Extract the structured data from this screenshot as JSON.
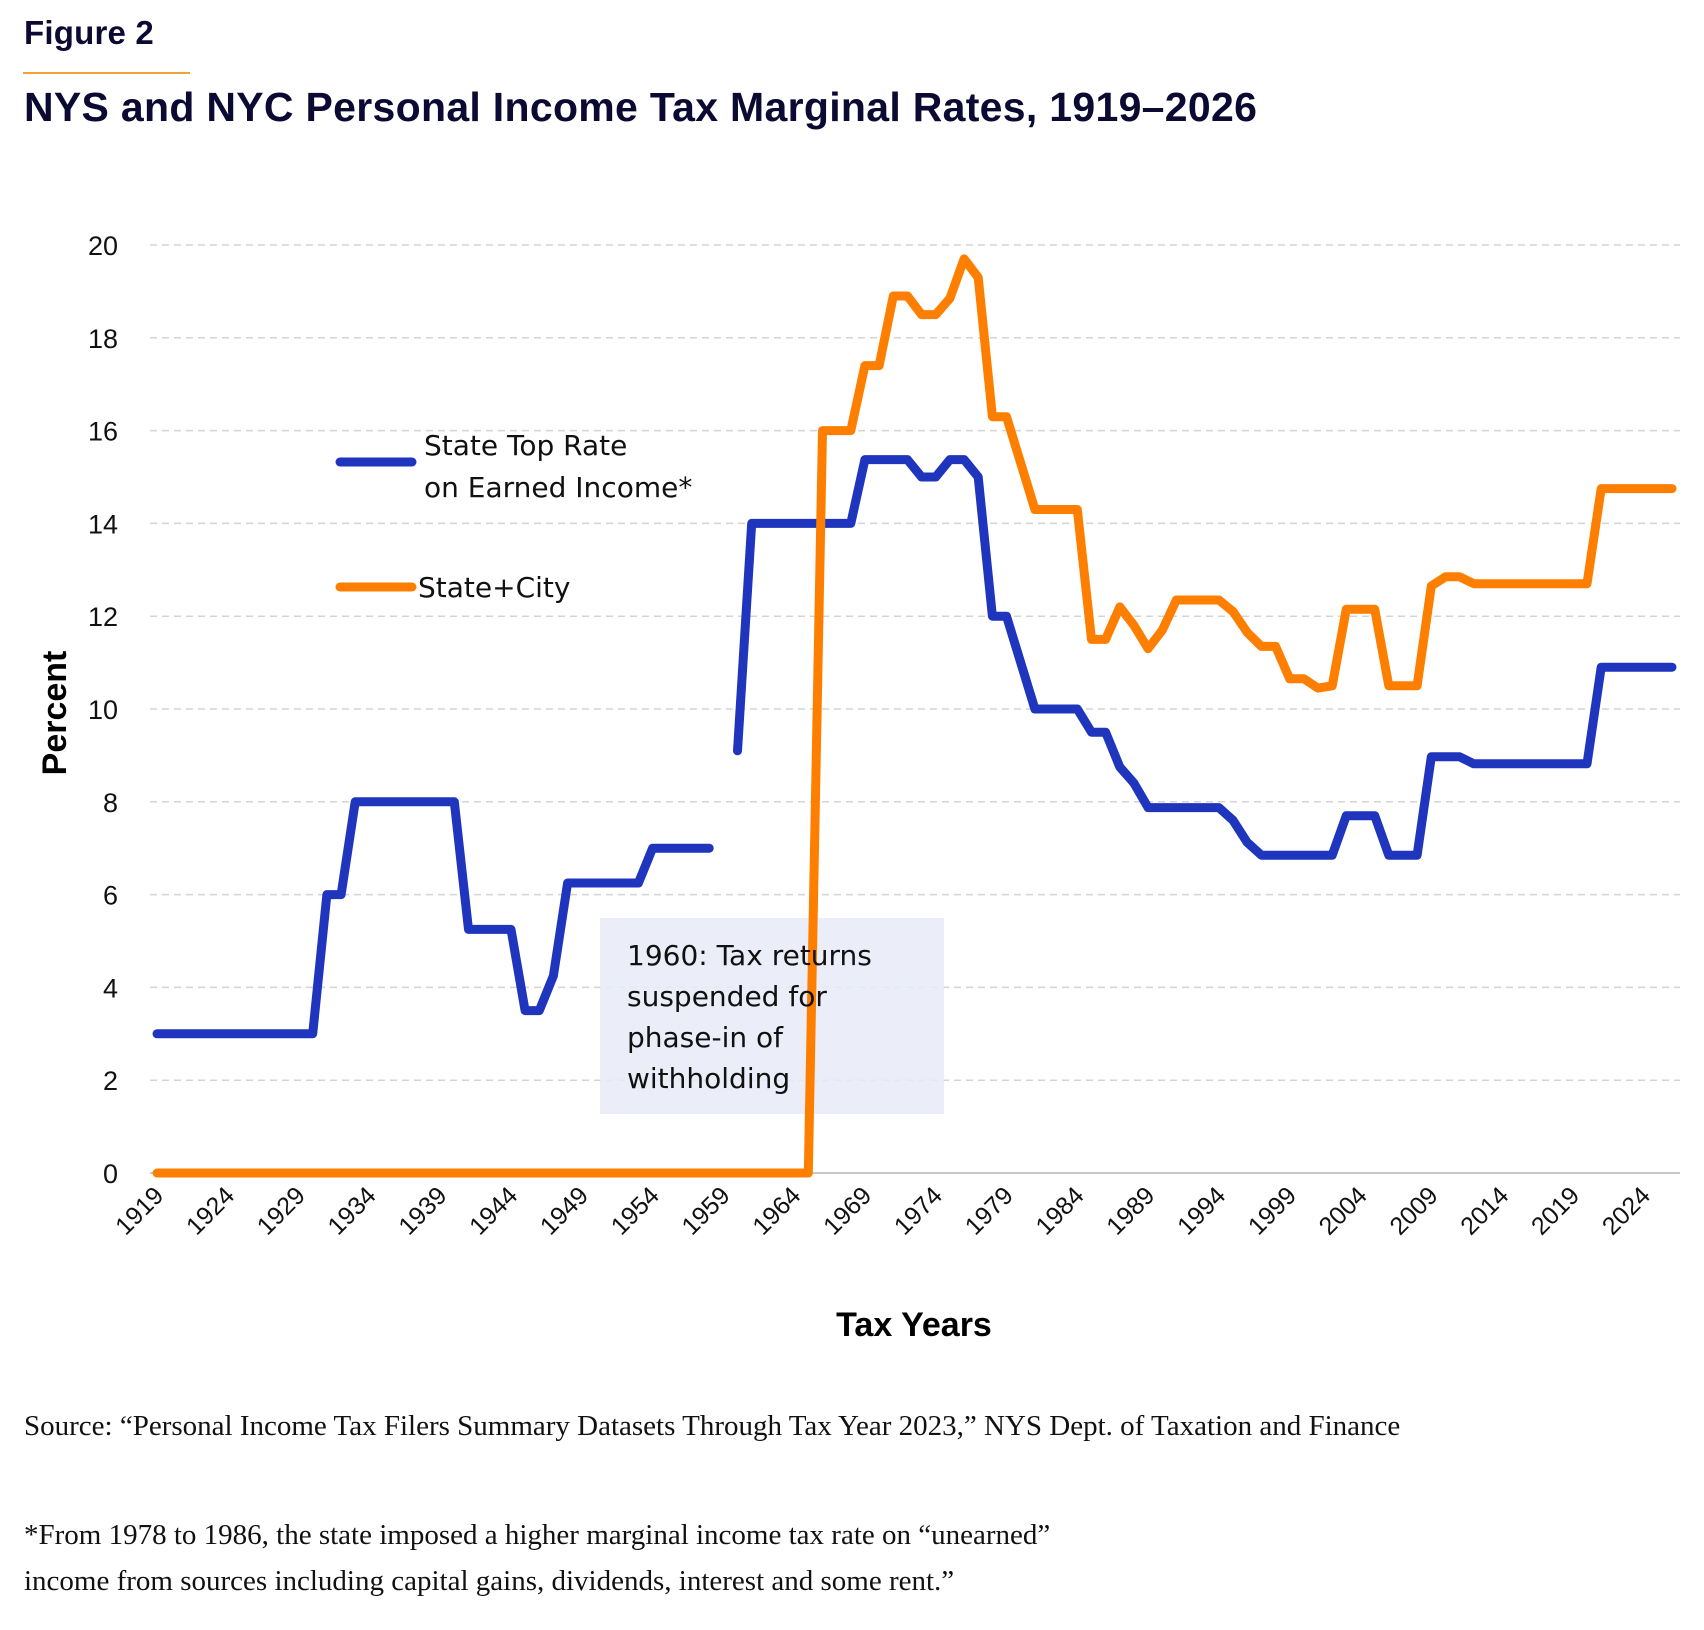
{
  "figure_label": "Figure 2",
  "title": "NYS and NYC Personal Income Tax Marginal Rates, 1919–2026",
  "source": "Source: “Personal Income Tax Filers Summary Datasets Through Tax Year 2023,” NYS Dept. of Taxation and Finance",
  "footnote_lines": [
    "*From 1978 to 1986, the state imposed a higher marginal income tax rate on “unearned”",
    "income from sources including capital gains, dividends, interest and some rent.”"
  ],
  "annotation": {
    "lines": [
      "1960: Tax returns",
      "suspended for",
      "phase-in of",
      "withholding"
    ],
    "background": "#e8ebf8"
  },
  "legend": [
    {
      "lines": [
        "State Top Rate",
        "on Earned Income*"
      ],
      "color": "#1f35bd"
    },
    {
      "lines": [
        "State+City"
      ],
      "color": "#fe7f00"
    }
  ],
  "chart_data": {
    "type": "line",
    "title": "NYS and NYC Personal Income Tax Marginal Rates, 1919–2026",
    "xlabel": "Tax Years",
    "ylabel": "Percent",
    "ylim": [
      0,
      20
    ],
    "xlim": [
      1919,
      2026
    ],
    "yticks": [
      0,
      2,
      4,
      6,
      8,
      10,
      12,
      14,
      16,
      18,
      20
    ],
    "xtick_labels": [
      "1919",
      "1924",
      "1929",
      "1934",
      "1939",
      "1944",
      "1949",
      "1954",
      "1959",
      "1964",
      "1969",
      "1974",
      "1979",
      "1984",
      "1989",
      "1994",
      "1999",
      "2004",
      "2009",
      "2014",
      "2019",
      "2024"
    ],
    "grid": "horizontal-dashed",
    "legend_position": "upper-left-inside",
    "x": [
      1919,
      1920,
      1921,
      1922,
      1923,
      1924,
      1925,
      1926,
      1927,
      1928,
      1929,
      1930,
      1931,
      1932,
      1933,
      1934,
      1935,
      1936,
      1937,
      1938,
      1939,
      1940,
      1941,
      1942,
      1943,
      1944,
      1945,
      1946,
      1947,
      1948,
      1949,
      1950,
      1951,
      1952,
      1953,
      1954,
      1955,
      1956,
      1957,
      1958,
      1959,
      1960,
      1961,
      1962,
      1963,
      1964,
      1965,
      1966,
      1967,
      1968,
      1969,
      1970,
      1971,
      1972,
      1973,
      1974,
      1975,
      1976,
      1977,
      1978,
      1979,
      1980,
      1981,
      1982,
      1983,
      1984,
      1985,
      1986,
      1987,
      1988,
      1989,
      1990,
      1991,
      1992,
      1993,
      1994,
      1995,
      1996,
      1997,
      1998,
      1999,
      2000,
      2001,
      2002,
      2003,
      2004,
      2005,
      2006,
      2007,
      2008,
      2009,
      2010,
      2011,
      2012,
      2013,
      2014,
      2015,
      2016,
      2017,
      2018,
      2019,
      2020,
      2021,
      2022,
      2023,
      2024,
      2025,
      2026
    ],
    "series": [
      {
        "name": "State Top Rate on Earned Income*",
        "color": "#1f35bd",
        "values": [
          3,
          3,
          3,
          3,
          3,
          3,
          3,
          3,
          3,
          3,
          3,
          3,
          6,
          6,
          8,
          8,
          8,
          8,
          8,
          8,
          8,
          8,
          5.25,
          5.25,
          5.25,
          5.25,
          3.5,
          3.5,
          4.25,
          6.25,
          6.25,
          6.25,
          6.25,
          6.25,
          6.25,
          7,
          7,
          7,
          7,
          7,
          null,
          9.1,
          14,
          14,
          14,
          14,
          14,
          14,
          14,
          14,
          15.375,
          15.375,
          15.375,
          15.375,
          15,
          15,
          15.375,
          15.375,
          15,
          12,
          12,
          11,
          10,
          10,
          10,
          10,
          9.5,
          9.5,
          8.75,
          8.4,
          7.875,
          7.875,
          7.875,
          7.875,
          7.875,
          7.875,
          7.6,
          7.125,
          6.85,
          6.85,
          6.85,
          6.85,
          6.85,
          6.85,
          7.7,
          7.7,
          7.7,
          6.85,
          6.85,
          6.85,
          8.97,
          8.97,
          8.97,
          8.82,
          8.82,
          8.82,
          8.82,
          8.82,
          8.82,
          8.82,
          8.82,
          8.82,
          10.9,
          10.9,
          10.9,
          10.9,
          10.9,
          10.9
        ]
      },
      {
        "name": "State+City",
        "color": "#fe7f00",
        "values": [
          0,
          0,
          0,
          0,
          0,
          0,
          0,
          0,
          0,
          0,
          0,
          0,
          0,
          0,
          0,
          0,
          0,
          0,
          0,
          0,
          0,
          0,
          0,
          0,
          0,
          0,
          0,
          0,
          0,
          0,
          0,
          0,
          0,
          0,
          0,
          0,
          0,
          0,
          0,
          0,
          0,
          0,
          0,
          0,
          0,
          0,
          0,
          16,
          16,
          16,
          17.4,
          17.4,
          18.9,
          18.9,
          18.5,
          18.5,
          18.85,
          19.7,
          19.3,
          16.3,
          16.3,
          15.3,
          14.3,
          14.3,
          14.3,
          14.3,
          11.5,
          11.5,
          12.2,
          11.8,
          11.3,
          11.7,
          12.35,
          12.35,
          12.35,
          12.35,
          12.1,
          11.65,
          11.35,
          11.35,
          10.65,
          10.65,
          10.45,
          10.5,
          12.15,
          12.15,
          12.15,
          10.5,
          10.5,
          10.5,
          12.65,
          12.85,
          12.85,
          12.7,
          12.7,
          12.7,
          12.7,
          12.7,
          12.7,
          12.7,
          12.7,
          12.7,
          14.75,
          14.75,
          14.75,
          14.75,
          14.75,
          14.75
        ]
      }
    ]
  }
}
